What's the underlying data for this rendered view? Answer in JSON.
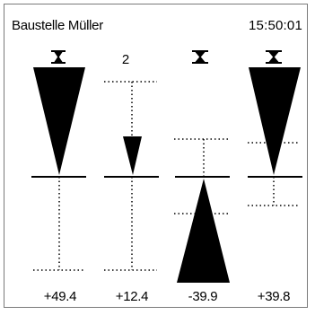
{
  "header": {
    "title": "Baustelle Müller",
    "clock": "15:50:01"
  },
  "columns": [
    {
      "number": "",
      "readout": "+49.4",
      "value": 49.4
    },
    {
      "number": "2",
      "readout": "+12.4",
      "value": 12.4
    },
    {
      "number": "",
      "readout": "-39.9",
      "value": -39.9
    },
    {
      "number": "",
      "readout": "+39.8",
      "value": 39.8
    }
  ]
}
